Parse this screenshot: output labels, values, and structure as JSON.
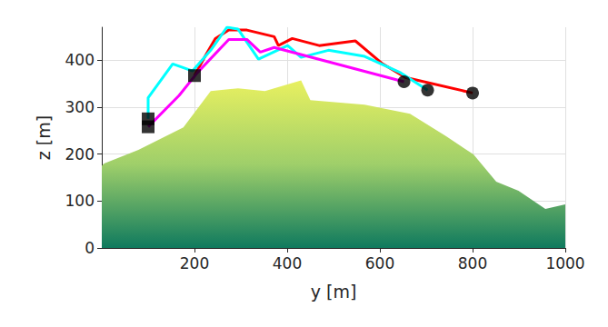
{
  "chart_data": {
    "type": "line",
    "x_label": "y [m]",
    "y_label": "z [m]",
    "xlim": [
      0,
      1000
    ],
    "xticks": [
      200,
      400,
      600,
      800,
      1000
    ],
    "ylim": [
      0,
      470
    ],
    "yticks": [
      0,
      100,
      200,
      300,
      400
    ],
    "grid": true,
    "series": [
      {
        "type": "area",
        "color": "#e8f060",
        "x": [
          0,
          5,
          79,
          176,
          235,
          294,
          352,
          430,
          450,
          567,
          665,
          743,
          802,
          851,
          899,
          957,
          1000
        ],
        "values": [
          175,
          180,
          209,
          257,
          334,
          340,
          334,
          357,
          315,
          305,
          286,
          238,
          199,
          141,
          122,
          83,
          93
        ]
      },
      {
        "type": "line",
        "color": "#ff0000",
        "x": [
          200,
          225,
          245,
          274,
          313,
          372,
          381,
          411,
          469,
          547,
          606,
          655,
          800
        ],
        "values": [
          367,
          412,
          446,
          464,
          464,
          450,
          431,
          446,
          431,
          441,
          392,
          363,
          330
        ]
      },
      {
        "type": "line",
        "color": "#00ffff",
        "x": [
          100,
          100,
          153,
          196,
          235,
          270,
          294,
          338,
          401,
          430,
          489,
          567,
          645,
          703
        ],
        "values": [
          275,
          320,
          392,
          377,
          421,
          470,
          466,
          402,
          431,
          406,
          421,
          408,
          373,
          336
        ]
      },
      {
        "type": "line",
        "color": "#ff00ff",
        "x": [
          100,
          167,
          206,
          274,
          313,
          342,
          372,
          652
        ],
        "values": [
          258,
          325,
          373,
          444,
          444,
          417,
          427,
          354
        ]
      },
      {
        "type": "scatter",
        "marker": "square",
        "color": "#000000",
        "x": [
          100,
          100,
          200
        ],
        "values": [
          275,
          258,
          367
        ]
      },
      {
        "type": "scatter",
        "marker": "circle",
        "color": "#000000",
        "x": [
          800,
          703,
          652
        ],
        "values": [
          330,
          336,
          354
        ]
      }
    ]
  }
}
